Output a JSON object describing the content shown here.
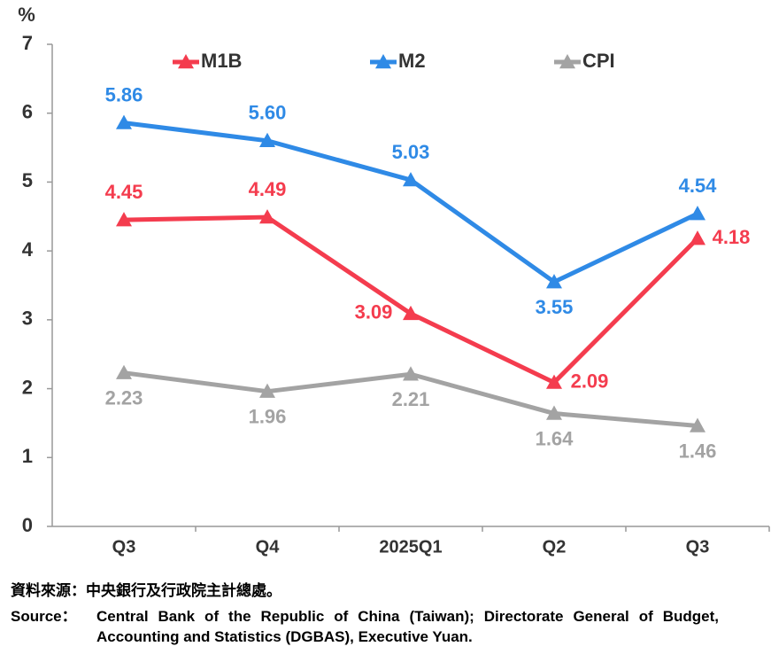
{
  "chart_data": {
    "type": "line",
    "y_label": "%",
    "categories": [
      "Q3",
      "Q4",
      "2025Q1",
      "Q2",
      "Q3"
    ],
    "series": [
      {
        "name": "M1B",
        "color": "#f43c4e",
        "values": [
          4.45,
          4.49,
          3.09,
          2.09,
          4.18
        ]
      },
      {
        "name": "M2",
        "color": "#2f8ae6",
        "values": [
          5.86,
          5.6,
          5.03,
          3.55,
          4.54
        ],
        "value_labels": [
          "5.86",
          "5.60",
          "5.03",
          "3.55",
          "4.54"
        ]
      },
      {
        "name": "CPI",
        "color": "#a3a3a3",
        "values": [
          2.23,
          1.96,
          2.21,
          1.64,
          1.46
        ]
      }
    ],
    "ylim": [
      0,
      7
    ],
    "yticks": [
      0,
      1,
      2,
      3,
      4,
      5,
      6,
      7
    ],
    "grid": false,
    "legend": "top",
    "source_zh": "資料來源：中央銀行及行政院主計總處。",
    "source_label": "Source：",
    "source_text": "Central Bank of the Republic of China (Taiwan); Directorate General of Budget, Accounting and Statistics (DGBAS), Executive Yuan."
  }
}
